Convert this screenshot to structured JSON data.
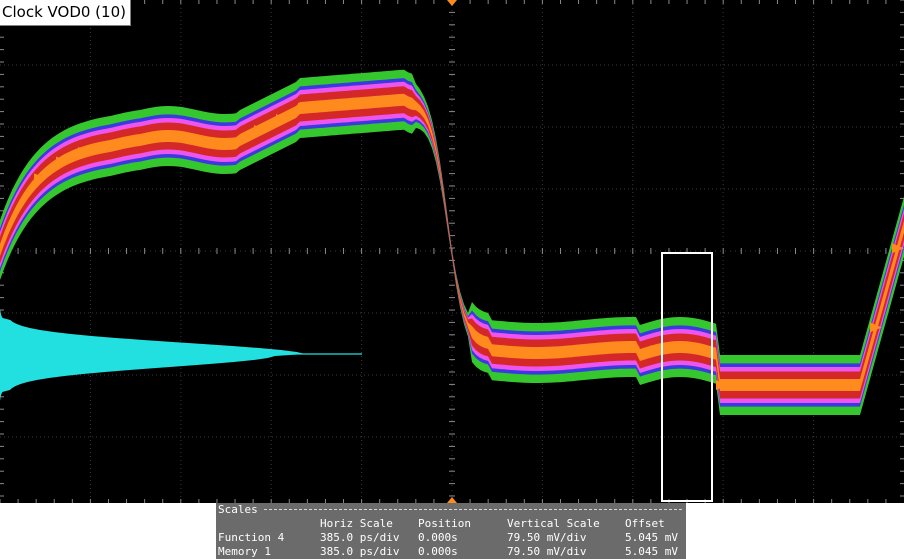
{
  "window": {
    "title": "Clock VOD0 (10)"
  },
  "colors": {
    "background": "#000000",
    "grid": "#3a3a3a",
    "grid_dots": "#8a8a8a",
    "histogram": "#22e0e0",
    "markers": "#ff8c1a",
    "measurement_box": "#ffffff",
    "density_layers": [
      "#35c82e",
      "#3a3ae0",
      "#ee55ee",
      "#d42828",
      "#ff8a1e"
    ]
  },
  "scales_panel": {
    "title": "Scales",
    "headers": {
      "name": "",
      "horiz_scale": "Horiz Scale",
      "position": "Position",
      "vertical_scale": "Vertical Scale",
      "offset": "Offset"
    },
    "rows": [
      {
        "name": "Function 4",
        "horiz_scale": "385.0 ps/div",
        "position": "0.000s",
        "vertical_scale": "79.50 mV/div",
        "offset": "5.045 mV"
      },
      {
        "name": "Memory 1",
        "horiz_scale": "385.0 ps/div",
        "position": "0.000s",
        "vertical_scale": "79.50 mV/div",
        "offset": "5.045 mV"
      }
    ]
  }
}
